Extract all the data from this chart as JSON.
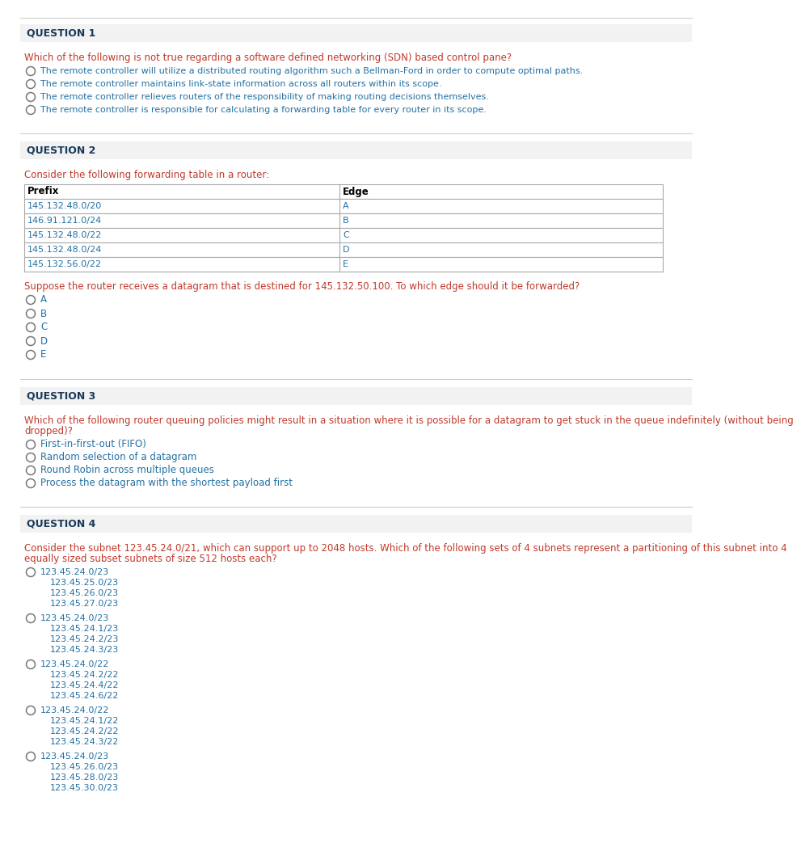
{
  "bg_color": "#ffffff",
  "question_label_color": "#1a3a5c",
  "question_text_color": "#c0392b",
  "option_text_color": "#2471a3",
  "black_color": "#000000",
  "separator_color": "#cccccc",
  "table_border_color": "#aaaaaa",
  "q1_label": "QUESTION 1",
  "q1_text": "Which of the following is not true regarding a software defined networking (SDN) based control pane?",
  "q1_options": [
    "The remote controller will utilize a distributed routing algorithm such a Bellman-Ford in order to compute optimal paths.",
    "The remote controller maintains link-state information across all routers within its scope.",
    "The remote controller relieves routers of the responsibility of making routing decisions themselves.",
    "The remote controller is responsible for calculating a forwarding table for every router in its scope."
  ],
  "q2_label": "QUESTION 2",
  "q2_text": "Consider the following forwarding table in a router:",
  "q2_table_headers": [
    "Prefix",
    "Edge"
  ],
  "q2_table_rows": [
    [
      "145.132.48.0/20",
      "A"
    ],
    [
      "146.91.121.0/24",
      "B"
    ],
    [
      "145.132.48.0/22",
      "C"
    ],
    [
      "145.132.48.0/24",
      "D"
    ],
    [
      "145.132.56.0/22",
      "E"
    ]
  ],
  "q2_followup": "Suppose the router receives a datagram that is destined for 145.132.50.100. To which edge should it be forwarded?",
  "q2_options": [
    "A",
    "B",
    "C",
    "D",
    "E"
  ],
  "q3_label": "QUESTION 3",
  "q3_line1": "Which of the following router queuing policies might result in a situation where it is possible for a datagram to get stuck in the queue indefinitely (without being",
  "q3_line2": "dropped)?",
  "q3_options": [
    "First-in-first-out (FIFO)",
    "Random selection of a datagram",
    "Round Robin across multiple queues",
    "Process the datagram with the shortest payload first"
  ],
  "q4_label": "QUESTION 4",
  "q4_line1": "Consider the subnet 123.45.24.0/21, which can support up to 2048 hosts. Which of the following sets of 4 subnets represent a partitioning of this subnet into 4",
  "q4_line2": "equally sized subset subnets of size 512 hosts each?",
  "q4_options": [
    [
      "123.45.24.0/23",
      "123.45.25.0/23",
      "123.45.26.0/23",
      "123.45.27.0/23"
    ],
    [
      "123.45.24.0/23",
      "123.45.24.1/23",
      "123.45.24.2/23",
      "123.45.24.3/23"
    ],
    [
      "123.45.24.0/22",
      "123.45.24.2/22",
      "123.45.24.4/22",
      "123.45.24.6/22"
    ],
    [
      "123.45.24.0/22",
      "123.45.24.1/22",
      "123.45.24.2/22",
      "123.45.24.3/22"
    ],
    [
      "123.45.24.0/23",
      "123.45.26.0/23",
      "123.45.28.0/23",
      "123.45.30.0/23"
    ]
  ]
}
